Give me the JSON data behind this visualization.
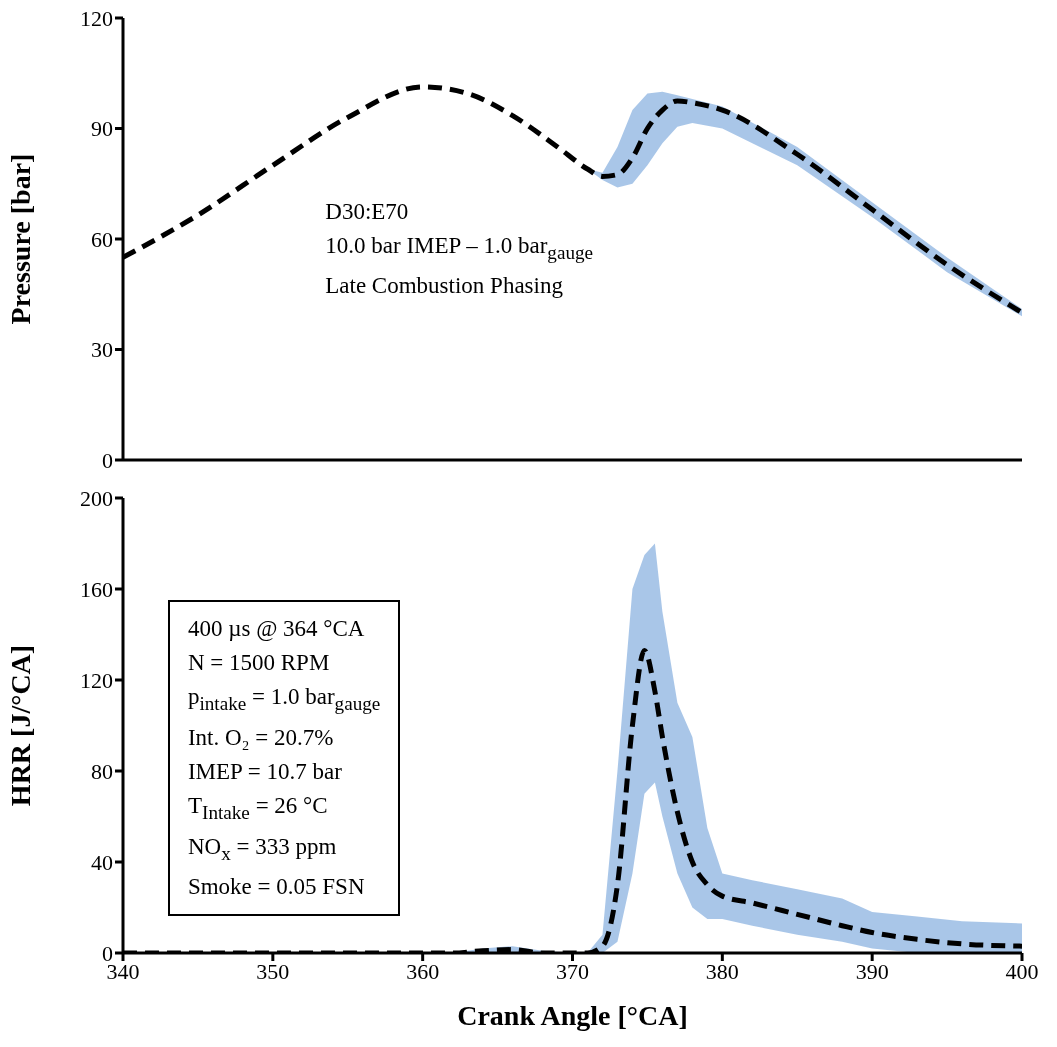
{
  "chart_data": [
    {
      "type": "line",
      "ylabel": "Pressure [bar]",
      "xlim": [
        340,
        400
      ],
      "xticks": [
        340,
        350,
        360,
        370,
        380,
        390,
        400
      ],
      "ylim": [
        0,
        120
      ],
      "yticks": [
        0,
        30,
        60,
        90,
        120
      ],
      "tick_labels": "y",
      "grid": false,
      "legend": false,
      "marker": "none",
      "x": [
        340,
        345,
        350,
        355,
        360,
        363,
        366,
        369,
        371,
        372,
        373,
        374,
        375,
        376,
        377,
        378,
        380,
        385,
        390,
        395,
        400
      ],
      "series": [
        {
          "color": "#000000",
          "line_style": "dashed",
          "values": [
            55,
            66.5,
            80,
            93,
            101.3,
            99.5,
            93.5,
            85,
            79,
            77,
            77.5,
            82,
            90,
            95,
            97.5,
            97,
            95,
            83,
            68,
            53,
            40
          ],
          "lower": [
            55,
            66.5,
            80,
            93,
            101.3,
            99.5,
            93.5,
            85,
            79,
            76,
            74,
            75,
            80,
            86,
            90.5,
            91.5,
            90,
            80,
            66,
            51,
            39
          ],
          "upper": [
            55,
            66.5,
            80,
            93,
            101.3,
            99.5,
            93.5,
            85,
            79,
            78,
            85,
            95,
            99.5,
            100,
            99,
            98,
            96,
            85,
            70,
            55,
            41
          ]
        }
      ],
      "annotations": [
        "D30:E70",
        "10.0 bar IMEP – 1.0 bar$_{gauge}$",
        "Late Combustion Phasing"
      ]
    },
    {
      "type": "line",
      "xlabel": "Crank Angle [°CA]",
      "ylabel": "HRR [J/°CA]",
      "xlim": [
        340,
        400
      ],
      "xticks": [
        340,
        350,
        360,
        370,
        380,
        390,
        400
      ],
      "ylim": [
        0,
        200
      ],
      "yticks": [
        0,
        40,
        80,
        120,
        160,
        200
      ],
      "grid": false,
      "legend": false,
      "marker": "none",
      "x": [
        340,
        350,
        360,
        362,
        364,
        366,
        368,
        370,
        371,
        372,
        373,
        374,
        374.8,
        375.5,
        376,
        377,
        378,
        379,
        380,
        382,
        385,
        388,
        390,
        393,
        396,
        400
      ],
      "series": [
        {
          "color": "#000000",
          "line_style": "dashed",
          "values": [
            0,
            0,
            0,
            0,
            1,
            1.5,
            0,
            0,
            0,
            3,
            30,
            100,
            133,
            115,
            95,
            62,
            40,
            30,
            25,
            22,
            17,
            12,
            9,
            6,
            4,
            3
          ],
          "lower": [
            0,
            0,
            0,
            0,
            0,
            0,
            0,
            0,
            0,
            0,
            5,
            35,
            70,
            75,
            60,
            35,
            20,
            15,
            15,
            12,
            8,
            5,
            2,
            0,
            0,
            0
          ],
          "upper": [
            0,
            0,
            0,
            0,
            2,
            3,
            1,
            0,
            0,
            8,
            80,
            160,
            175,
            180,
            150,
            110,
            95,
            55,
            35,
            32,
            28,
            24,
            18,
            16,
            14,
            13
          ]
        }
      ],
      "annotations": [
        "400 µs @ 364 °CA",
        "N = 1500 RPM",
        "p$_{intake}$ = 1.0 bar$_{gauge}$",
        "Int. O₂ = 20.7%",
        "IMEP = 10.7 bar",
        "T$_{Intake}$ = 26 °C",
        "NO$_{x}$ = 333 ppm",
        "Smoke = 0.05 FSN"
      ]
    }
  ]
}
